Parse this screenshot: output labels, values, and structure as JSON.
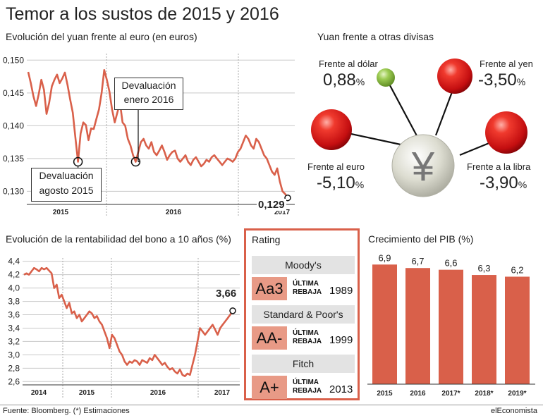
{
  "title": "Temor a los sustos de 2015 y 2016",
  "footer": {
    "source": "Fuente: Bloomberg. (*) Estimaciones",
    "brand": "elEconomista"
  },
  "yuan_chart": {
    "subtitle": "Evolución del yuan frente al euro (en euros)",
    "last_value_label": "0,129",
    "annotations": [
      {
        "name": "devaluation-aug-2015",
        "line1": "Devaluación",
        "line2": "agosto 2015"
      },
      {
        "name": "devaluation-jan-2016",
        "line1": "Devaluación",
        "line2": "enero 2016"
      }
    ]
  },
  "currencies": {
    "subtitle": "Yuan frente a otras divisas",
    "symbol": "¥",
    "items": [
      {
        "label": "Frente al dólar",
        "value": "0,88",
        "suffix": "%",
        "color": "#8cbf3f"
      },
      {
        "label": "Frente al yen",
        "value": "-3,50",
        "suffix": "%",
        "color": "#e01f1f"
      },
      {
        "label": "Frente al euro",
        "value": "-5,10",
        "suffix": "%",
        "color": "#e01f1f"
      },
      {
        "label": "Frente a la libra",
        "value": "-3,90",
        "suffix": "%",
        "color": "#e01f1f"
      }
    ]
  },
  "bond_chart": {
    "subtitle": "Evolución de la rentabilidad del bono a 10 años (%)",
    "last_value_label": "3,66"
  },
  "rating": {
    "title": "Rating",
    "agencies": [
      {
        "name": "Moody's",
        "grade": "Aa3",
        "note_line1": "ÚLTIMA",
        "note_line2": "REBAJA",
        "year": "1989"
      },
      {
        "name": "Standard & Poor's",
        "grade": "AA-",
        "note_line1": "ÚLTIMA",
        "note_line2": "REBAJA",
        "year": "1999"
      },
      {
        "name": "Fitch",
        "grade": "A+",
        "note_line1": "ÚLTIMA",
        "note_line2": "REBAJA",
        "year": "2013"
      }
    ]
  },
  "pib_chart": {
    "subtitle": "Crecimiento del PIB (%)"
  },
  "chart_data": [
    {
      "type": "line",
      "name": "yuan-euro",
      "x_ticks": [
        "2015",
        "2016",
        "2017"
      ],
      "ylim": [
        0.128,
        0.151
      ],
      "y_ticks": [
        0.13,
        0.135,
        0.14,
        0.145,
        0.15
      ],
      "y_tick_labels": [
        "0,130",
        "0,135",
        "0,140",
        "0,145",
        "0,150"
      ],
      "grid": true,
      "series": [
        {
          "values": [
            0.1482,
            0.1465,
            0.1445,
            0.143,
            0.1448,
            0.147,
            0.1455,
            0.1418,
            0.1435,
            0.146,
            0.147,
            0.1478,
            0.1465,
            0.1472,
            0.1481,
            0.1462,
            0.144,
            0.142,
            0.1382,
            0.1345,
            0.1388,
            0.1405,
            0.1401,
            0.1378,
            0.1396,
            0.1395,
            0.141,
            0.1425,
            0.145,
            0.1485,
            0.147,
            0.1452,
            0.1425,
            0.1405,
            0.142,
            0.1435,
            0.1405,
            0.14,
            0.138,
            0.137,
            0.1355,
            0.1345,
            0.136,
            0.1375,
            0.138,
            0.137,
            0.1365,
            0.1375,
            0.136,
            0.1355,
            0.1362,
            0.137,
            0.136,
            0.1348,
            0.1355,
            0.136,
            0.1362,
            0.135,
            0.1345,
            0.135,
            0.1355,
            0.1345,
            0.134,
            0.1348,
            0.1352,
            0.1345,
            0.1338,
            0.1342,
            0.1348,
            0.1345,
            0.1352,
            0.1355,
            0.135,
            0.1345,
            0.134,
            0.1345,
            0.135,
            0.1348,
            0.1345,
            0.135,
            0.136,
            0.1365,
            0.1375,
            0.1385,
            0.138,
            0.137,
            0.1365,
            0.138,
            0.1375,
            0.1365,
            0.1355,
            0.135,
            0.134,
            0.133,
            0.1325,
            0.1335,
            0.1315,
            0.13,
            0.1296,
            0.129
          ]
        }
      ],
      "annotations": [
        {
          "label": "Devaluación agosto 2015",
          "x_index": 19,
          "y": 0.1345
        },
        {
          "label": "Devaluación enero 2016",
          "x_index": 41,
          "y": 0.1345
        }
      ],
      "last_label": "0,129"
    },
    {
      "type": "line",
      "name": "bond-10y",
      "x_ticks": [
        "2014",
        "2015",
        "2016",
        "2017"
      ],
      "ylim": [
        2.55,
        4.45
      ],
      "y_ticks": [
        2.6,
        2.8,
        3.0,
        3.2,
        3.4,
        3.6,
        3.8,
        4.0,
        4.2,
        4.4
      ],
      "y_tick_labels": [
        "2,6",
        "2,8",
        "3,0",
        "3,2",
        "3,4",
        "3,6",
        "3,8",
        "4,0",
        "4,2",
        "4,4"
      ],
      "grid": true,
      "series": [
        {
          "values": [
            4.2,
            4.22,
            4.2,
            4.25,
            4.3,
            4.28,
            4.25,
            4.3,
            4.28,
            4.3,
            4.26,
            4.22,
            4.0,
            4.05,
            3.85,
            3.9,
            3.8,
            3.7,
            3.78,
            3.62,
            3.65,
            3.55,
            3.6,
            3.5,
            3.55,
            3.6,
            3.65,
            3.62,
            3.55,
            3.58,
            3.5,
            3.45,
            3.35,
            3.25,
            3.1,
            3.3,
            3.25,
            3.15,
            3.05,
            3.0,
            2.9,
            2.85,
            2.9,
            2.88,
            2.92,
            2.9,
            2.85,
            2.92,
            2.9,
            2.88,
            2.95,
            2.92,
            3.0,
            2.95,
            2.9,
            2.85,
            2.88,
            2.82,
            2.78,
            2.8,
            2.75,
            2.72,
            2.78,
            2.7,
            2.68,
            2.72,
            2.7,
            2.85,
            3.0,
            3.2,
            3.4,
            3.35,
            3.3,
            3.35,
            3.4,
            3.45,
            3.38,
            3.3,
            3.4,
            3.45,
            3.5,
            3.55,
            3.6,
            3.66
          ]
        }
      ],
      "last_label": "3,66"
    },
    {
      "type": "bar",
      "name": "pib",
      "categories": [
        "2015",
        "2016",
        "2017*",
        "2018*",
        "2019*"
      ],
      "values": [
        6.9,
        6.7,
        6.6,
        6.3,
        6.2
      ],
      "value_labels": [
        "6,9",
        "6,7",
        "6,6",
        "6,3",
        "6,2"
      ],
      "ylim": [
        0,
        7.4
      ],
      "color": "#d9604a"
    }
  ]
}
